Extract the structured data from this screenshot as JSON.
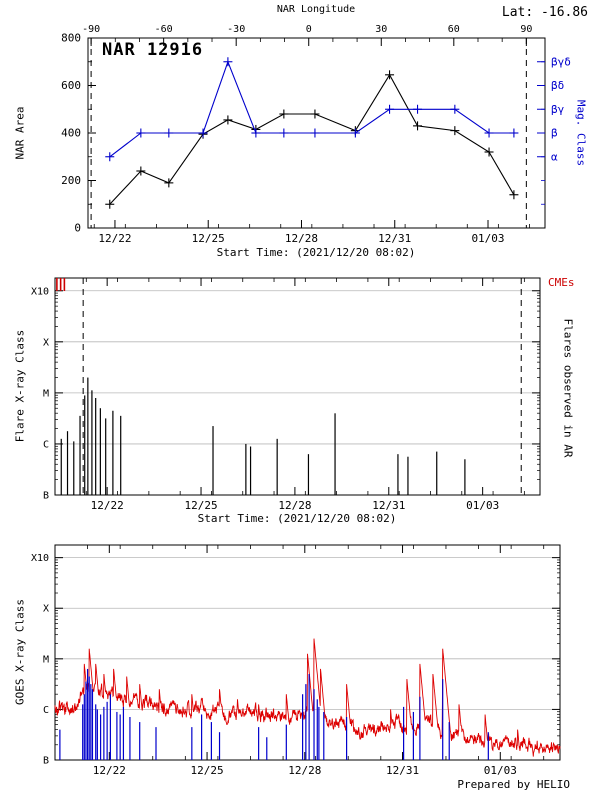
{
  "page": {
    "lat_label": "Lat: -16.86",
    "prepared_by": "Prepared by HELIO"
  },
  "time_axis": {
    "start_time_label": "Start Time: (2021/12/20 08:02)",
    "range_days": [
      0,
      15.5
    ],
    "minor_tick_every_days": 1,
    "ticks": [
      {
        "day": 1.667,
        "label": "12/22"
      },
      {
        "day": 4.667,
        "label": "12/25"
      },
      {
        "day": 7.667,
        "label": "12/28"
      },
      {
        "day": 10.667,
        "label": "12/31"
      },
      {
        "day": 13.667,
        "label": "01/03"
      }
    ]
  },
  "chart_data": [
    {
      "type": "line",
      "title": "NAR 12916",
      "ylabel": "NAR Area",
      "ylim": [
        0,
        800
      ],
      "yticks": [
        0,
        200,
        400,
        600,
        800
      ],
      "xlim_days": [
        0.8,
        15.5
      ],
      "top_axis": {
        "label": "NAR Longitude",
        "ticks": [
          -90,
          -60,
          -30,
          0,
          30,
          60,
          90
        ],
        "minor_every": 10,
        "day_at_minus90": 0.9,
        "day_at_plus90": 14.9
      },
      "right_axis": {
        "label": "Mag. Class",
        "color": "#0000cc",
        "ticks": [
          {
            "value": 300,
            "label": "α"
          },
          {
            "value": 400,
            "label": "β"
          },
          {
            "value": 500,
            "label": "βγ"
          },
          {
            "value": 600,
            "label": "βδ"
          },
          {
            "value": 700,
            "label": "βγδ"
          }
        ]
      },
      "dashed_days": [
        0.9,
        14.9
      ],
      "series": [
        {
          "name": "NAR Area",
          "color": "#000000",
          "marker": "plus",
          "points": [
            [
              1.5,
              100
            ],
            [
              2.5,
              240
            ],
            [
              3.4,
              190
            ],
            [
              4.5,
              395
            ],
            [
              5.3,
              455
            ],
            [
              6.2,
              415
            ],
            [
              7.1,
              480
            ],
            [
              8.1,
              480
            ],
            [
              9.4,
              410
            ],
            [
              10.5,
              645
            ],
            [
              11.4,
              430
            ],
            [
              12.6,
              410
            ],
            [
              13.7,
              320
            ],
            [
              14.5,
              140
            ]
          ]
        },
        {
          "name": "Magnetic Class",
          "color": "#0000cc",
          "marker": "plus",
          "points": [
            [
              1.5,
              300
            ],
            [
              2.5,
              400
            ],
            [
              3.4,
              400
            ],
            [
              4.5,
              400
            ],
            [
              5.3,
              700
            ],
            [
              6.2,
              400
            ],
            [
              7.1,
              400
            ],
            [
              8.1,
              400
            ],
            [
              9.4,
              400
            ],
            [
              10.5,
              500
            ],
            [
              11.4,
              500
            ],
            [
              12.6,
              500
            ],
            [
              13.7,
              400
            ],
            [
              14.5,
              400
            ]
          ]
        }
      ]
    },
    {
      "type": "impulse",
      "ylabel": "Flare X-ray Class",
      "right_label": "Flares observed in AR",
      "cme_label": "CMEs",
      "cme_color": "#cc0000",
      "flare_color": "#000000",
      "ylim_log10": [
        -7,
        -2.75
      ],
      "yticks": [
        {
          "log10": -7,
          "label": "B"
        },
        {
          "log10": -6,
          "label": "C"
        },
        {
          "log10": -5,
          "label": "M"
        },
        {
          "log10": -4,
          "label": "X"
        },
        {
          "log10": -3,
          "label": "X10"
        }
      ],
      "grid_log10": [
        -6,
        -5,
        -4,
        -3
      ],
      "dashed_days": [
        0.9,
        14.9
      ],
      "cme_days": [
        0.06,
        0.18,
        0.3
      ],
      "flares_day_log10": [
        [
          0.2,
          -5.9
        ],
        [
          0.4,
          -5.75
        ],
        [
          0.6,
          -5.95
        ],
        [
          0.8,
          -5.45
        ],
        [
          0.95,
          -5.05
        ],
        [
          1.05,
          -4.7
        ],
        [
          1.18,
          -4.95
        ],
        [
          1.3,
          -5.1
        ],
        [
          1.45,
          -5.3
        ],
        [
          1.62,
          -5.5
        ],
        [
          1.85,
          -5.35
        ],
        [
          2.1,
          -5.45
        ],
        [
          5.05,
          -5.65
        ],
        [
          6.1,
          -6.0
        ],
        [
          6.25,
          -6.05
        ],
        [
          7.1,
          -5.9
        ],
        [
          8.1,
          -6.2
        ],
        [
          8.95,
          -5.4
        ],
        [
          10.96,
          -6.2
        ],
        [
          11.28,
          -6.25
        ],
        [
          12.2,
          -6.15
        ],
        [
          13.1,
          -6.3
        ]
      ]
    },
    {
      "type": "line",
      "ylabel": "GOES X-ray Class",
      "ylim_log10": [
        -7,
        -2.75
      ],
      "yticks": [
        {
          "log10": -7,
          "label": "B"
        },
        {
          "log10": -6,
          "label": "C"
        },
        {
          "log10": -5,
          "label": "M"
        },
        {
          "log10": -4,
          "label": "X"
        },
        {
          "log10": -3,
          "label": "X10"
        }
      ],
      "grid_log10": [
        -6,
        -5,
        -4,
        -3
      ],
      "red_color": "#dd0000",
      "blue_color": "#0000cc",
      "envelope_day_log10": [
        [
          0,
          -6.0
        ],
        [
          0.5,
          -5.95
        ],
        [
          1,
          -5.6
        ],
        [
          1.5,
          -5.65
        ],
        [
          2,
          -5.75
        ],
        [
          2.5,
          -5.85
        ],
        [
          3,
          -5.95
        ],
        [
          3.5,
          -6.0
        ],
        [
          4,
          -6.05
        ],
        [
          4.5,
          -6.0
        ],
        [
          5,
          -6.05
        ],
        [
          5.5,
          -6.1
        ],
        [
          6,
          -6.05
        ],
        [
          6.5,
          -6.15
        ],
        [
          7,
          -6.2
        ],
        [
          7.5,
          -6.1
        ],
        [
          8,
          -6.05
        ],
        [
          8.5,
          -6.25
        ],
        [
          9,
          -6.35
        ],
        [
          9.5,
          -6.4
        ],
        [
          10,
          -6.35
        ],
        [
          10.5,
          -6.3
        ],
        [
          11,
          -6.3
        ],
        [
          11.5,
          -6.25
        ],
        [
          12,
          -6.45
        ],
        [
          12.5,
          -6.55
        ],
        [
          13,
          -6.6
        ],
        [
          13.5,
          -6.65
        ],
        [
          14,
          -6.7
        ],
        [
          14.5,
          -6.75
        ],
        [
          15,
          -6.75
        ],
        [
          15.5,
          -6.8
        ]
      ],
      "spikes_day_log10": [
        [
          0.9,
          -5.1
        ],
        [
          1.05,
          -4.8
        ],
        [
          1.25,
          -5.1
        ],
        [
          1.5,
          -5.3
        ],
        [
          1.8,
          -5.2
        ],
        [
          2.2,
          -5.35
        ],
        [
          2.6,
          -5.5
        ],
        [
          3.2,
          -5.6
        ],
        [
          4.2,
          -5.7
        ],
        [
          5.05,
          -5.6
        ],
        [
          5.6,
          -5.8
        ],
        [
          6.25,
          -5.9
        ],
        [
          7.1,
          -5.7
        ],
        [
          7.75,
          -4.9
        ],
        [
          7.95,
          -4.6
        ],
        [
          8.15,
          -5.2
        ],
        [
          8.95,
          -5.5
        ],
        [
          10.3,
          -6.0
        ],
        [
          10.8,
          -5.4
        ],
        [
          11.2,
          -5.1
        ],
        [
          11.6,
          -5.3
        ],
        [
          11.9,
          -4.8
        ],
        [
          12.4,
          -5.9
        ],
        [
          13.2,
          -6.1
        ],
        [
          14.2,
          -6.4
        ]
      ],
      "blue_spikes_day_log10": [
        [
          0.15,
          -6.4
        ],
        [
          0.85,
          -5.9
        ],
        [
          0.9,
          -5.7
        ],
        [
          0.95,
          -5.45
        ],
        [
          1.0,
          -5.2
        ],
        [
          1.05,
          -5.35
        ],
        [
          1.1,
          -5.5
        ],
        [
          1.15,
          -5.6
        ],
        [
          1.25,
          -5.9
        ],
        [
          1.3,
          -6.0
        ],
        [
          1.4,
          -6.1
        ],
        [
          1.5,
          -5.95
        ],
        [
          1.6,
          -5.85
        ],
        [
          1.7,
          -5.7
        ],
        [
          1.9,
          -6.05
        ],
        [
          2.0,
          -6.1
        ],
        [
          2.1,
          -5.95
        ],
        [
          2.3,
          -6.15
        ],
        [
          2.6,
          -6.25
        ],
        [
          3.1,
          -6.35
        ],
        [
          4.2,
          -6.35
        ],
        [
          4.5,
          -6.1
        ],
        [
          4.8,
          -6.25
        ],
        [
          5.05,
          -6.45
        ],
        [
          6.25,
          -6.35
        ],
        [
          6.5,
          -6.55
        ],
        [
          7.1,
          -6.3
        ],
        [
          7.6,
          -5.7
        ],
        [
          7.7,
          -5.5
        ],
        [
          7.8,
          -5.3
        ],
        [
          7.95,
          -5.6
        ],
        [
          8.05,
          -5.8
        ],
        [
          8.1,
          -5.95
        ],
        [
          8.25,
          -6.05
        ],
        [
          8.95,
          -6.15
        ],
        [
          10.7,
          -5.95
        ],
        [
          11.0,
          -6.05
        ],
        [
          11.2,
          -5.75
        ],
        [
          11.9,
          -5.4
        ],
        [
          12.1,
          -6.25
        ],
        [
          13.3,
          -6.45
        ]
      ]
    }
  ]
}
